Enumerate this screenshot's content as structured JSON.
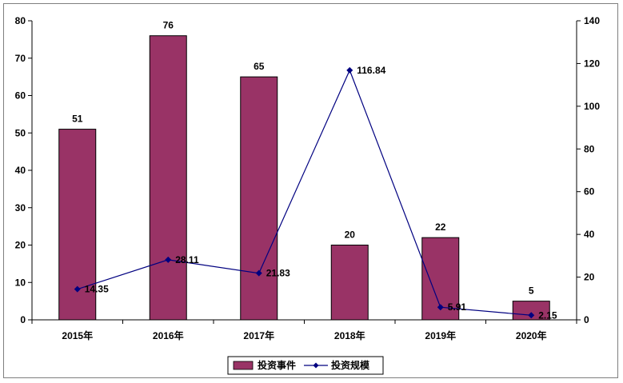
{
  "chart_data": {
    "type": "bar+line",
    "categories": [
      "2015年",
      "2016年",
      "2017年",
      "2018年",
      "2019年",
      "2020年"
    ],
    "series": [
      {
        "name": "投资事件",
        "type": "bar",
        "axis": "left",
        "color": "#993366",
        "values": [
          51,
          76,
          65,
          20,
          22,
          5
        ],
        "labels": [
          "51",
          "76",
          "65",
          "20",
          "22",
          "5"
        ]
      },
      {
        "name": "投资规模",
        "type": "line",
        "axis": "right",
        "color": "#000080",
        "values": [
          14.35,
          28.11,
          21.83,
          116.84,
          5.91,
          2.15
        ],
        "labels": [
          "14.35",
          "28.11",
          "21.83",
          "116.84",
          "5.91",
          "2.15"
        ]
      }
    ],
    "y_left": {
      "range": [
        0,
        80
      ],
      "ticks": [
        "0",
        "10",
        "20",
        "30",
        "40",
        "50",
        "60",
        "70",
        "80"
      ]
    },
    "y_right": {
      "range": [
        0,
        140
      ],
      "ticks": [
        "0",
        "20",
        "40",
        "60",
        "80",
        "100",
        "120",
        "140"
      ]
    },
    "grid": false,
    "legend": "bottom"
  }
}
